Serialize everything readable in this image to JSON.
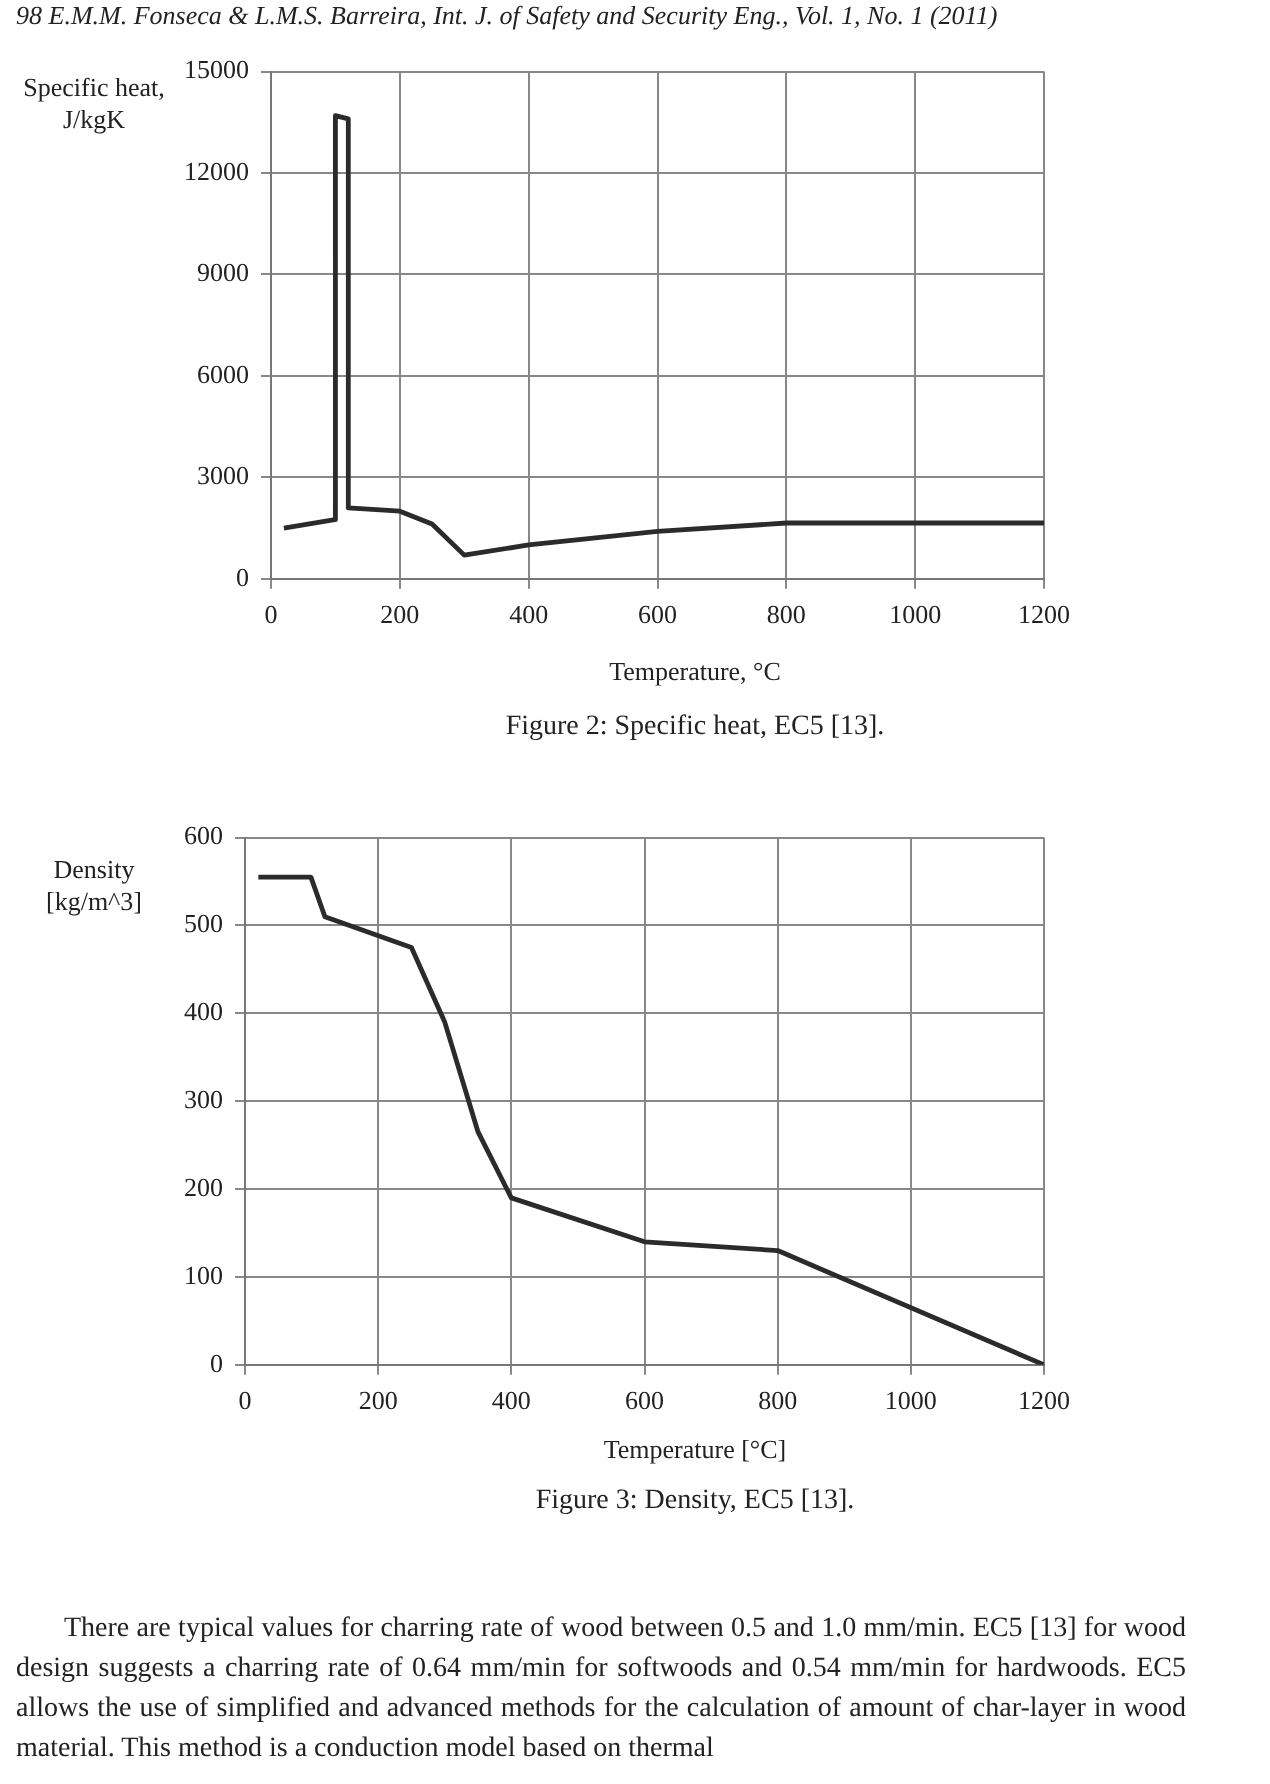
{
  "chart_data": [
    {
      "type": "line",
      "xlabel": "Temperature, °C",
      "ylabel": "Specific heat, J/kgK",
      "annotations": [
        "98   E.M.M. Fonseca & L.M.S. Barreira, Int. J. of Safety and Security Eng., Vol. 1, No. 1 (2011)",
        "Figure 2: Specific heat, EC5 [13]."
      ],
      "x": [
        20,
        99,
        100,
        120,
        120,
        200,
        250,
        300,
        400,
        600,
        800,
        1200
      ],
      "series": [
        {
          "color": "#2b2b2b",
          "values": [
            1500,
            1750,
            13700,
            13600,
            2100,
            2000,
            1620,
            700,
            1000,
            1400,
            1650,
            1650
          ]
        }
      ],
      "xlim": [
        0,
        1200
      ],
      "xticks": [
        0,
        200,
        400,
        600,
        800,
        1000,
        1200
      ],
      "ylim": [
        0,
        15000
      ],
      "yticks": [
        0,
        3000,
        6000,
        9000,
        12000,
        15000
      ],
      "grid": true,
      "legend": false
    },
    {
      "type": "line",
      "xlabel": "Temperature [°C]",
      "ylabel": "Density [kg/m^3]",
      "annotations": [
        "Figure 3: Density, EC5 [13].",
        "There are typical values for charring rate of wood between 0.5 and 1.0 mm/min. EC5 [13] for wood design suggests a charring rate of 0.64 mm/min for softwoods and 0.54 mm/min for hardwoods. EC5 allows the use of simplified and advanced methods for the calculation of amount of char-layer in wood material. This method is a conduction model based on thermal"
      ],
      "x": [
        20,
        99,
        120,
        250,
        300,
        350,
        400,
        600,
        800,
        1200
      ],
      "series": [
        {
          "color": "#2b2b2b",
          "values": [
            555,
            555,
            510,
            475,
            390,
            265,
            190,
            140,
            130,
            0
          ]
        }
      ],
      "xlim": [
        0,
        1200
      ],
      "xticks": [
        0,
        200,
        400,
        600,
        800,
        1000,
        1200
      ],
      "ylim": [
        0,
        600
      ],
      "yticks": [
        0,
        100,
        200,
        300,
        400,
        500,
        600
      ],
      "grid": true,
      "legend": false
    }
  ]
}
